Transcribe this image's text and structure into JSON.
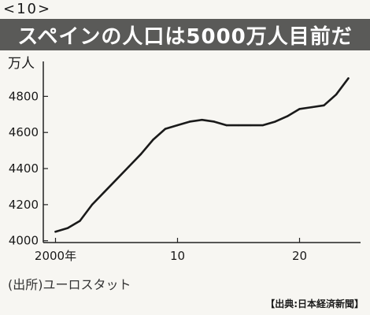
{
  "figure_number": "<10>",
  "credit": "【出典:日本経済新聞】",
  "chart_data": {
    "type": "line",
    "title": "スペインの人口は5000万人目前だ",
    "ylabel": "万人",
    "xlabel": "",
    "source": "(出所)ユーロスタット",
    "ylim": [
      3990,
      4950
    ],
    "xlim": [
      1999,
      2025
    ],
    "yticks": [
      4000,
      4200,
      4400,
      4600,
      4800
    ],
    "xticks": [
      {
        "value": 2000,
        "label": "2000年"
      },
      {
        "value": 2010,
        "label": "10"
      },
      {
        "value": 2020,
        "label": "20"
      }
    ],
    "grid": false,
    "x": [
      2000,
      2001,
      2002,
      2003,
      2004,
      2005,
      2006,
      2007,
      2008,
      2009,
      2010,
      2011,
      2012,
      2013,
      2014,
      2015,
      2016,
      2017,
      2018,
      2019,
      2020,
      2021,
      2022,
      2023,
      2024
    ],
    "series": [
      {
        "values": [
          4050,
          4070,
          4110,
          4200,
          4270,
          4340,
          4410,
          4480,
          4560,
          4620,
          4640,
          4660,
          4670,
          4660,
          4640,
          4640,
          4640,
          4640,
          4660,
          4690,
          4730,
          4740,
          4750,
          4810,
          4900
        ]
      }
    ]
  }
}
